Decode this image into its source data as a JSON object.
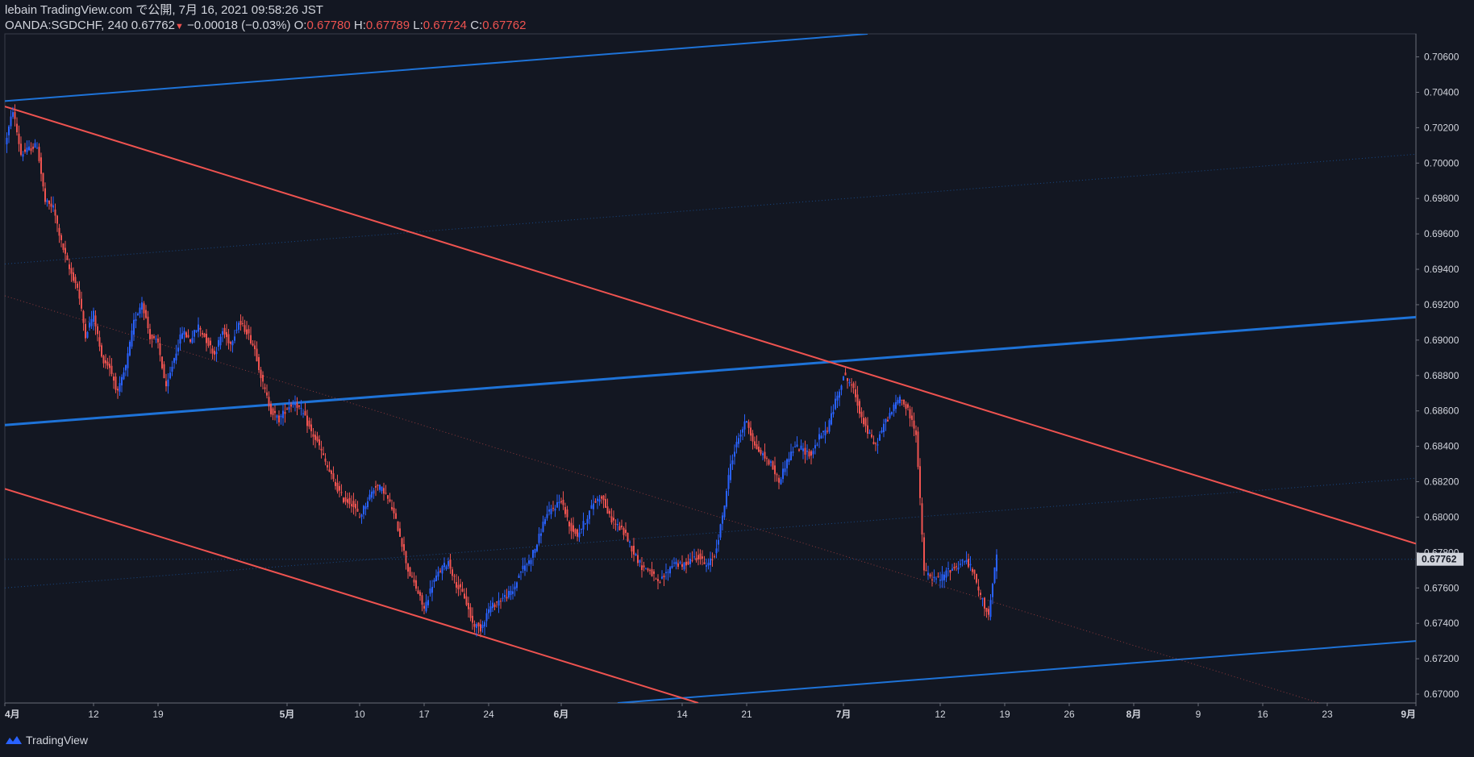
{
  "header": {
    "published_line": "lebain TradingView.com で公開, 7月 16, 2021 09:58:26 JST",
    "symbol": "OANDA:SGDCHF, 240",
    "last_price": "0.67762",
    "change": "−0.00018 (−0.03%)",
    "open_label": "O:",
    "open": "0.67780",
    "high_label": "H:",
    "high": "0.67789",
    "low_label": "L:",
    "low": "0.67724",
    "close_label": "C:",
    "close": "0.67762"
  },
  "footer": {
    "brand": "TradingView",
    "logo_icon": "tradingview-logo-icon"
  },
  "colors": {
    "background": "#131722",
    "up": "#2962ff",
    "down": "#ef5350",
    "blue_line": "#1e73d8",
    "red_line": "#ef5350",
    "text": "#d1d4dc"
  },
  "chart_data": {
    "type": "candlestick",
    "y_axis": {
      "range": [
        0.6695,
        0.7073
      ],
      "ticks": [
        "0.70600",
        "0.70400",
        "0.70200",
        "0.70000",
        "0.69800",
        "0.69600",
        "0.69400",
        "0.69200",
        "0.69000",
        "0.68800",
        "0.68600",
        "0.68400",
        "0.68200",
        "0.68000",
        "0.67800",
        "0.67600",
        "0.67400",
        "0.67200",
        "0.67000"
      ],
      "tick_values": [
        0.706,
        0.704,
        0.702,
        0.7,
        0.698,
        0.696,
        0.694,
        0.692,
        0.69,
        0.688,
        0.686,
        0.684,
        0.682,
        0.68,
        0.678,
        0.676,
        0.674,
        0.672,
        0.67
      ],
      "current_price_label": "0.67762",
      "current_price": 0.67762
    },
    "x_axis": {
      "range": [
        0,
        175
      ],
      "labels": [
        {
          "label": "4月",
          "day": 0
        },
        {
          "label": "12",
          "day": 11
        },
        {
          "label": "19",
          "day": 19
        },
        {
          "label": "5月",
          "day": 35
        },
        {
          "label": "10",
          "day": 44
        },
        {
          "label": "17",
          "day": 52
        },
        {
          "label": "24",
          "day": 60
        },
        {
          "label": "6月",
          "day": 69
        },
        {
          "label": "14",
          "day": 84
        },
        {
          "label": "21",
          "day": 92
        },
        {
          "label": "7月",
          "day": 104
        },
        {
          "label": "12",
          "day": 116
        },
        {
          "label": "19",
          "day": 124
        },
        {
          "label": "26",
          "day": 132
        },
        {
          "label": "8月",
          "day": 140
        },
        {
          "label": "9",
          "day": 148
        },
        {
          "label": "16",
          "day": 156
        },
        {
          "label": "23",
          "day": 164
        },
        {
          "label": "9月",
          "day": 175
        }
      ]
    },
    "price_path": [
      [
        0,
        0.701
      ],
      [
        1,
        0.703
      ],
      [
        2,
        0.7005
      ],
      [
        3,
        0.7008
      ],
      [
        4,
        0.701
      ],
      [
        5,
        0.6978
      ],
      [
        6,
        0.6975
      ],
      [
        7,
        0.6955
      ],
      [
        8,
        0.694
      ],
      [
        9,
        0.693
      ],
      [
        10,
        0.6903
      ],
      [
        11,
        0.6915
      ],
      [
        12,
        0.689
      ],
      [
        13,
        0.6885
      ],
      [
        14,
        0.687
      ],
      [
        15,
        0.6885
      ],
      [
        16,
        0.691
      ],
      [
        17,
        0.6922
      ],
      [
        18,
        0.6902
      ],
      [
        19,
        0.6898
      ],
      [
        20,
        0.6872
      ],
      [
        21,
        0.689
      ],
      [
        22,
        0.6905
      ],
      [
        23,
        0.69
      ],
      [
        24,
        0.6908
      ],
      [
        25,
        0.69
      ],
      [
        26,
        0.6892
      ],
      [
        27,
        0.6905
      ],
      [
        28,
        0.6898
      ],
      [
        29,
        0.691
      ],
      [
        30,
        0.6905
      ],
      [
        31,
        0.6895
      ],
      [
        32,
        0.6875
      ],
      [
        33,
        0.686
      ],
      [
        34,
        0.6855
      ],
      [
        35,
        0.6862
      ],
      [
        36,
        0.6865
      ],
      [
        37,
        0.6858
      ],
      [
        38,
        0.6848
      ],
      [
        39,
        0.684
      ],
      [
        40,
        0.6828
      ],
      [
        41,
        0.6818
      ],
      [
        42,
        0.681
      ],
      [
        43,
        0.6808
      ],
      [
        44,
        0.68
      ],
      [
        45,
        0.681
      ],
      [
        46,
        0.6818
      ],
      [
        47,
        0.6815
      ],
      [
        48,
        0.6805
      ],
      [
        49,
        0.679
      ],
      [
        50,
        0.677
      ],
      [
        51,
        0.676
      ],
      [
        52,
        0.6748
      ],
      [
        53,
        0.6762
      ],
      [
        54,
        0.677
      ],
      [
        55,
        0.6775
      ],
      [
        56,
        0.6762
      ],
      [
        57,
        0.6755
      ],
      [
        58,
        0.674
      ],
      [
        59,
        0.6737
      ],
      [
        60,
        0.6748
      ],
      [
        61,
        0.6752
      ],
      [
        62,
        0.6755
      ],
      [
        63,
        0.6758
      ],
      [
        64,
        0.677
      ],
      [
        65,
        0.6775
      ],
      [
        66,
        0.6785
      ],
      [
        67,
        0.68
      ],
      [
        68,
        0.6805
      ],
      [
        69,
        0.681
      ],
      [
        70,
        0.6795
      ],
      [
        71,
        0.679
      ],
      [
        72,
        0.6798
      ],
      [
        73,
        0.6808
      ],
      [
        74,
        0.6812
      ],
      [
        75,
        0.68
      ],
      [
        76,
        0.6795
      ],
      [
        77,
        0.679
      ],
      [
        78,
        0.678
      ],
      [
        79,
        0.6772
      ],
      [
        80,
        0.677
      ],
      [
        81,
        0.6762
      ],
      [
        82,
        0.6768
      ],
      [
        83,
        0.6775
      ],
      [
        84,
        0.6772
      ],
      [
        85,
        0.6776
      ],
      [
        86,
        0.6778
      ],
      [
        87,
        0.6772
      ],
      [
        88,
        0.6778
      ],
      [
        89,
        0.68
      ],
      [
        90,
        0.683
      ],
      [
        91,
        0.6845
      ],
      [
        92,
        0.6855
      ],
      [
        93,
        0.684
      ],
      [
        94,
        0.6835
      ],
      [
        95,
        0.683
      ],
      [
        96,
        0.682
      ],
      [
        97,
        0.6832
      ],
      [
        98,
        0.684
      ],
      [
        99,
        0.6838
      ],
      [
        100,
        0.6835
      ],
      [
        101,
        0.6845
      ],
      [
        102,
        0.685
      ],
      [
        103,
        0.6865
      ],
      [
        104,
        0.688
      ],
      [
        105,
        0.6875
      ],
      [
        106,
        0.686
      ],
      [
        107,
        0.6848
      ],
      [
        108,
        0.684
      ],
      [
        109,
        0.6852
      ],
      [
        110,
        0.686
      ],
      [
        111,
        0.6868
      ],
      [
        112,
        0.686
      ],
      [
        113,
        0.6848
      ],
      [
        114,
        0.677
      ],
      [
        115,
        0.6765
      ],
      [
        116,
        0.6765
      ],
      [
        117,
        0.677
      ],
      [
        118,
        0.6772
      ],
      [
        119,
        0.6776
      ],
      [
        120,
        0.677
      ],
      [
        121,
        0.6755
      ],
      [
        122,
        0.6745
      ],
      [
        123,
        0.6778
      ]
    ],
    "trend_lines": [
      {
        "color": "blue",
        "style": "solid",
        "width": 2,
        "from": [
          0,
          0.7035
        ],
        "to": [
          107,
          0.7073
        ]
      },
      {
        "color": "blue",
        "style": "solid",
        "width": 3,
        "from": [
          0,
          0.6852
        ],
        "to": [
          175,
          0.6913
        ]
      },
      {
        "color": "blue",
        "style": "solid",
        "width": 2,
        "from": [
          76,
          0.6695
        ],
        "to": [
          175,
          0.673
        ]
      },
      {
        "color": "blue",
        "style": "dotted",
        "width": 1,
        "from": [
          0,
          0.6943
        ],
        "to": [
          175,
          0.7005
        ]
      },
      {
        "color": "blue",
        "style": "dotted",
        "width": 1,
        "from": [
          0,
          0.676
        ],
        "to": [
          175,
          0.6822
        ]
      },
      {
        "color": "red",
        "style": "solid",
        "width": 2,
        "from": [
          0,
          0.7032
        ],
        "to": [
          175,
          0.6785
        ]
      },
      {
        "color": "red",
        "style": "solid",
        "width": 2,
        "from": [
          0,
          0.6816
        ],
        "to": [
          86,
          0.6695
        ]
      },
      {
        "color": "red",
        "style": "dotted",
        "width": 1,
        "from": [
          0,
          0.6925
        ],
        "to": [
          163,
          0.6695
        ]
      },
      {
        "color": "blue",
        "style": "dotted",
        "width": 1,
        "from": [
          0,
          0.67762
        ],
        "to": [
          175,
          0.67762
        ]
      }
    ]
  }
}
